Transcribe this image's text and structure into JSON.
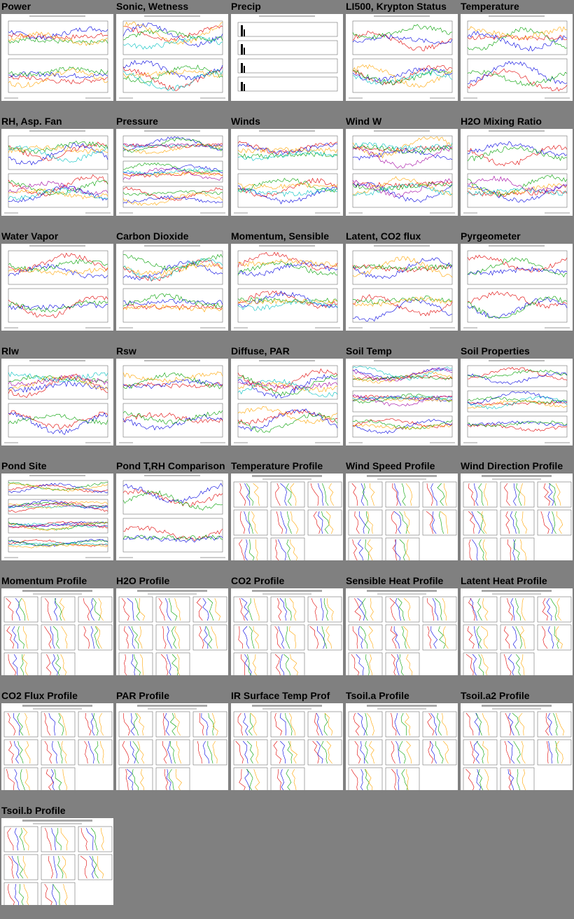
{
  "plots": [
    {
      "title": "Power",
      "kind": "ts2"
    },
    {
      "title": "Sonic, Wetness",
      "kind": "ts2"
    },
    {
      "title": "Precip",
      "kind": "precip"
    },
    {
      "title": "LI500, Krypton Status",
      "kind": "ts2"
    },
    {
      "title": "Temperature",
      "kind": "ts2"
    },
    {
      "title": "RH, Asp. Fan",
      "kind": "ts2"
    },
    {
      "title": "Pressure",
      "kind": "ts3"
    },
    {
      "title": "Winds",
      "kind": "ts2"
    },
    {
      "title": "Wind W",
      "kind": "ts2"
    },
    {
      "title": "H2O Mixing Ratio",
      "kind": "ts2"
    },
    {
      "title": "Water Vapor",
      "kind": "ts2"
    },
    {
      "title": "Carbon Dioxide",
      "kind": "ts2"
    },
    {
      "title": "Momentum, Sensible",
      "kind": "ts2"
    },
    {
      "title": "Latent, CO2 flux",
      "kind": "ts2"
    },
    {
      "title": "Pyrgeometer",
      "kind": "ts2"
    },
    {
      "title": "Rlw",
      "kind": "ts2"
    },
    {
      "title": "Rsw",
      "kind": "ts2"
    },
    {
      "title": "Diffuse, PAR",
      "kind": "ts2"
    },
    {
      "title": "Soil Temp",
      "kind": "ts3"
    },
    {
      "title": "Soil Properties",
      "kind": "ts3"
    },
    {
      "title": "Pond Site",
      "kind": "ts4"
    },
    {
      "title": "Pond T,RH Comparison",
      "kind": "ts2"
    },
    {
      "title": "Temperature Profile",
      "kind": "profile"
    },
    {
      "title": "Wind Speed Profile",
      "kind": "profile"
    },
    {
      "title": "Wind Direction Profile",
      "kind": "profile"
    },
    {
      "title": "Momentum Profile",
      "kind": "profile"
    },
    {
      "title": "H2O Profile",
      "kind": "profile"
    },
    {
      "title": "CO2 Profile",
      "kind": "profile"
    },
    {
      "title": "Sensible Heat Profile",
      "kind": "profile"
    },
    {
      "title": "Latent Heat Profile",
      "kind": "profile"
    },
    {
      "title": "CO2 Flux Profile",
      "kind": "profile"
    },
    {
      "title": "PAR Profile",
      "kind": "profile"
    },
    {
      "title": "IR Surface Temp Prof",
      "kind": "profile"
    },
    {
      "title": "Tsoil.a Profile",
      "kind": "profile"
    },
    {
      "title": "Tsoil.a2 Profile",
      "kind": "profile"
    },
    {
      "title": "Tsoil.b Profile",
      "kind": "profile"
    }
  ],
  "colors": {
    "background": "#808080",
    "series": [
      "#e00000",
      "#0000e0",
      "#00a000",
      "#ffa500",
      "#00c0c0",
      "#a000a0",
      "#000000"
    ]
  }
}
